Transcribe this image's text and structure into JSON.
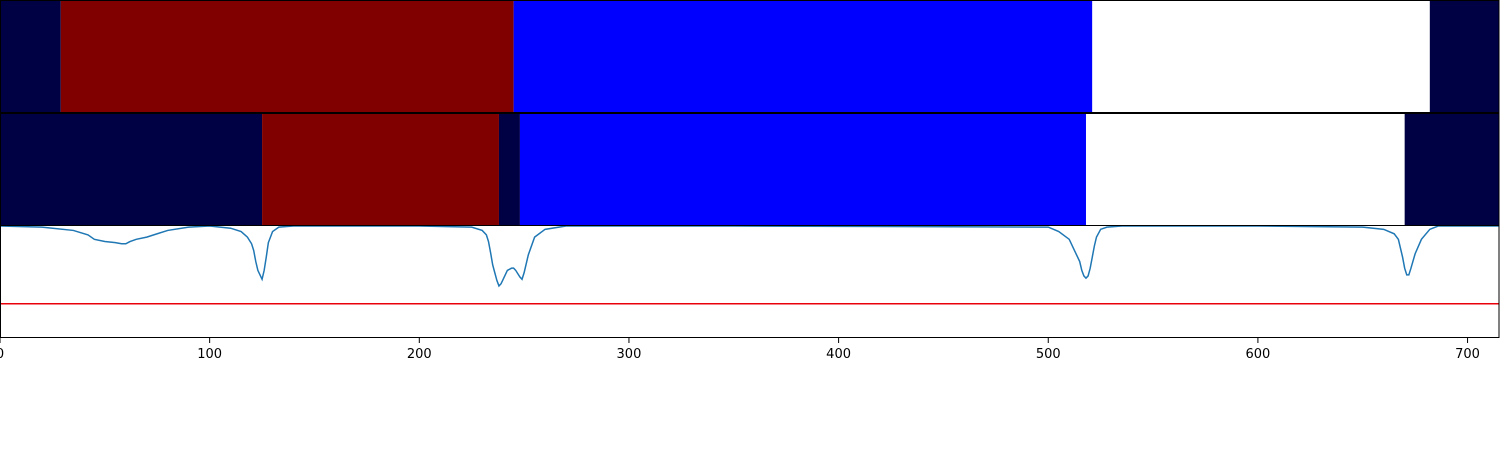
{
  "chart_data": {
    "type": "segmentation-timeline",
    "xlim": [
      0,
      715
    ],
    "x_ticks": [
      "0",
      "100",
      "200",
      "300",
      "400",
      "500",
      "600",
      "700"
    ],
    "x_tick_values": [
      0,
      100,
      200,
      300,
      400,
      500,
      600,
      700
    ],
    "colors": {
      "background_class": "#000045",
      "class_a": "#800000",
      "class_b": "#0000ff",
      "class_c": "#ffffff",
      "signal_line": "#1f77b4",
      "threshold_line": "#e8000b"
    },
    "segment_rows": [
      {
        "segments": [
          {
            "start": 0,
            "end": 29,
            "class": "background_class"
          },
          {
            "start": 29,
            "end": 245,
            "class": "class_a"
          },
          {
            "start": 245,
            "end": 521,
            "class": "class_b"
          },
          {
            "start": 521,
            "end": 682,
            "class": "class_c"
          },
          {
            "start": 682,
            "end": 715,
            "class": "background_class"
          }
        ]
      },
      {
        "segments": [
          {
            "start": 0,
            "end": 125,
            "class": "background_class"
          },
          {
            "start": 125,
            "end": 238,
            "class": "class_a"
          },
          {
            "start": 238,
            "end": 248,
            "class": "background_class"
          },
          {
            "start": 248,
            "end": 518,
            "class": "class_b"
          },
          {
            "start": 518,
            "end": 670,
            "class": "class_c"
          },
          {
            "start": 670,
            "end": 715,
            "class": "background_class"
          }
        ]
      }
    ],
    "signal": {
      "ylim": [
        0,
        1
      ],
      "threshold": 0.3,
      "x": [
        0,
        20,
        35,
        42,
        45,
        50,
        55,
        58,
        60,
        62,
        65,
        70,
        75,
        80,
        90,
        100,
        110,
        115,
        118,
        120,
        121,
        122,
        123,
        124,
        125,
        126,
        127,
        128,
        130,
        133,
        140,
        200,
        225,
        230,
        232,
        233,
        234,
        235,
        236,
        237,
        238,
        239,
        240,
        242,
        244,
        245,
        246,
        247,
        248,
        249,
        250,
        252,
        255,
        260,
        270,
        350,
        500,
        505,
        510,
        513,
        515,
        516,
        517,
        518,
        519,
        520,
        521,
        522,
        523,
        525,
        528,
        535,
        600,
        650,
        660,
        665,
        667,
        668,
        669,
        670,
        671,
        672,
        673,
        675,
        678,
        682,
        686,
        715
      ],
      "y": [
        1.0,
        0.99,
        0.96,
        0.92,
        0.88,
        0.86,
        0.85,
        0.84,
        0.84,
        0.86,
        0.88,
        0.9,
        0.93,
        0.96,
        0.99,
        1.0,
        0.98,
        0.95,
        0.9,
        0.84,
        0.78,
        0.68,
        0.6,
        0.56,
        0.52,
        0.6,
        0.72,
        0.85,
        0.95,
        0.99,
        1.0,
        1.0,
        0.99,
        0.96,
        0.92,
        0.86,
        0.76,
        0.65,
        0.58,
        0.51,
        0.46,
        0.48,
        0.52,
        0.6,
        0.62,
        0.62,
        0.6,
        0.57,
        0.54,
        0.52,
        0.58,
        0.74,
        0.9,
        0.97,
        1.0,
        1.0,
        0.99,
        0.95,
        0.88,
        0.76,
        0.68,
        0.6,
        0.55,
        0.53,
        0.55,
        0.62,
        0.72,
        0.82,
        0.9,
        0.97,
        0.99,
        1.0,
        1.0,
        0.99,
        0.97,
        0.93,
        0.88,
        0.8,
        0.72,
        0.62,
        0.56,
        0.56,
        0.62,
        0.75,
        0.88,
        0.97,
        1.0,
        1.0
      ]
    }
  }
}
